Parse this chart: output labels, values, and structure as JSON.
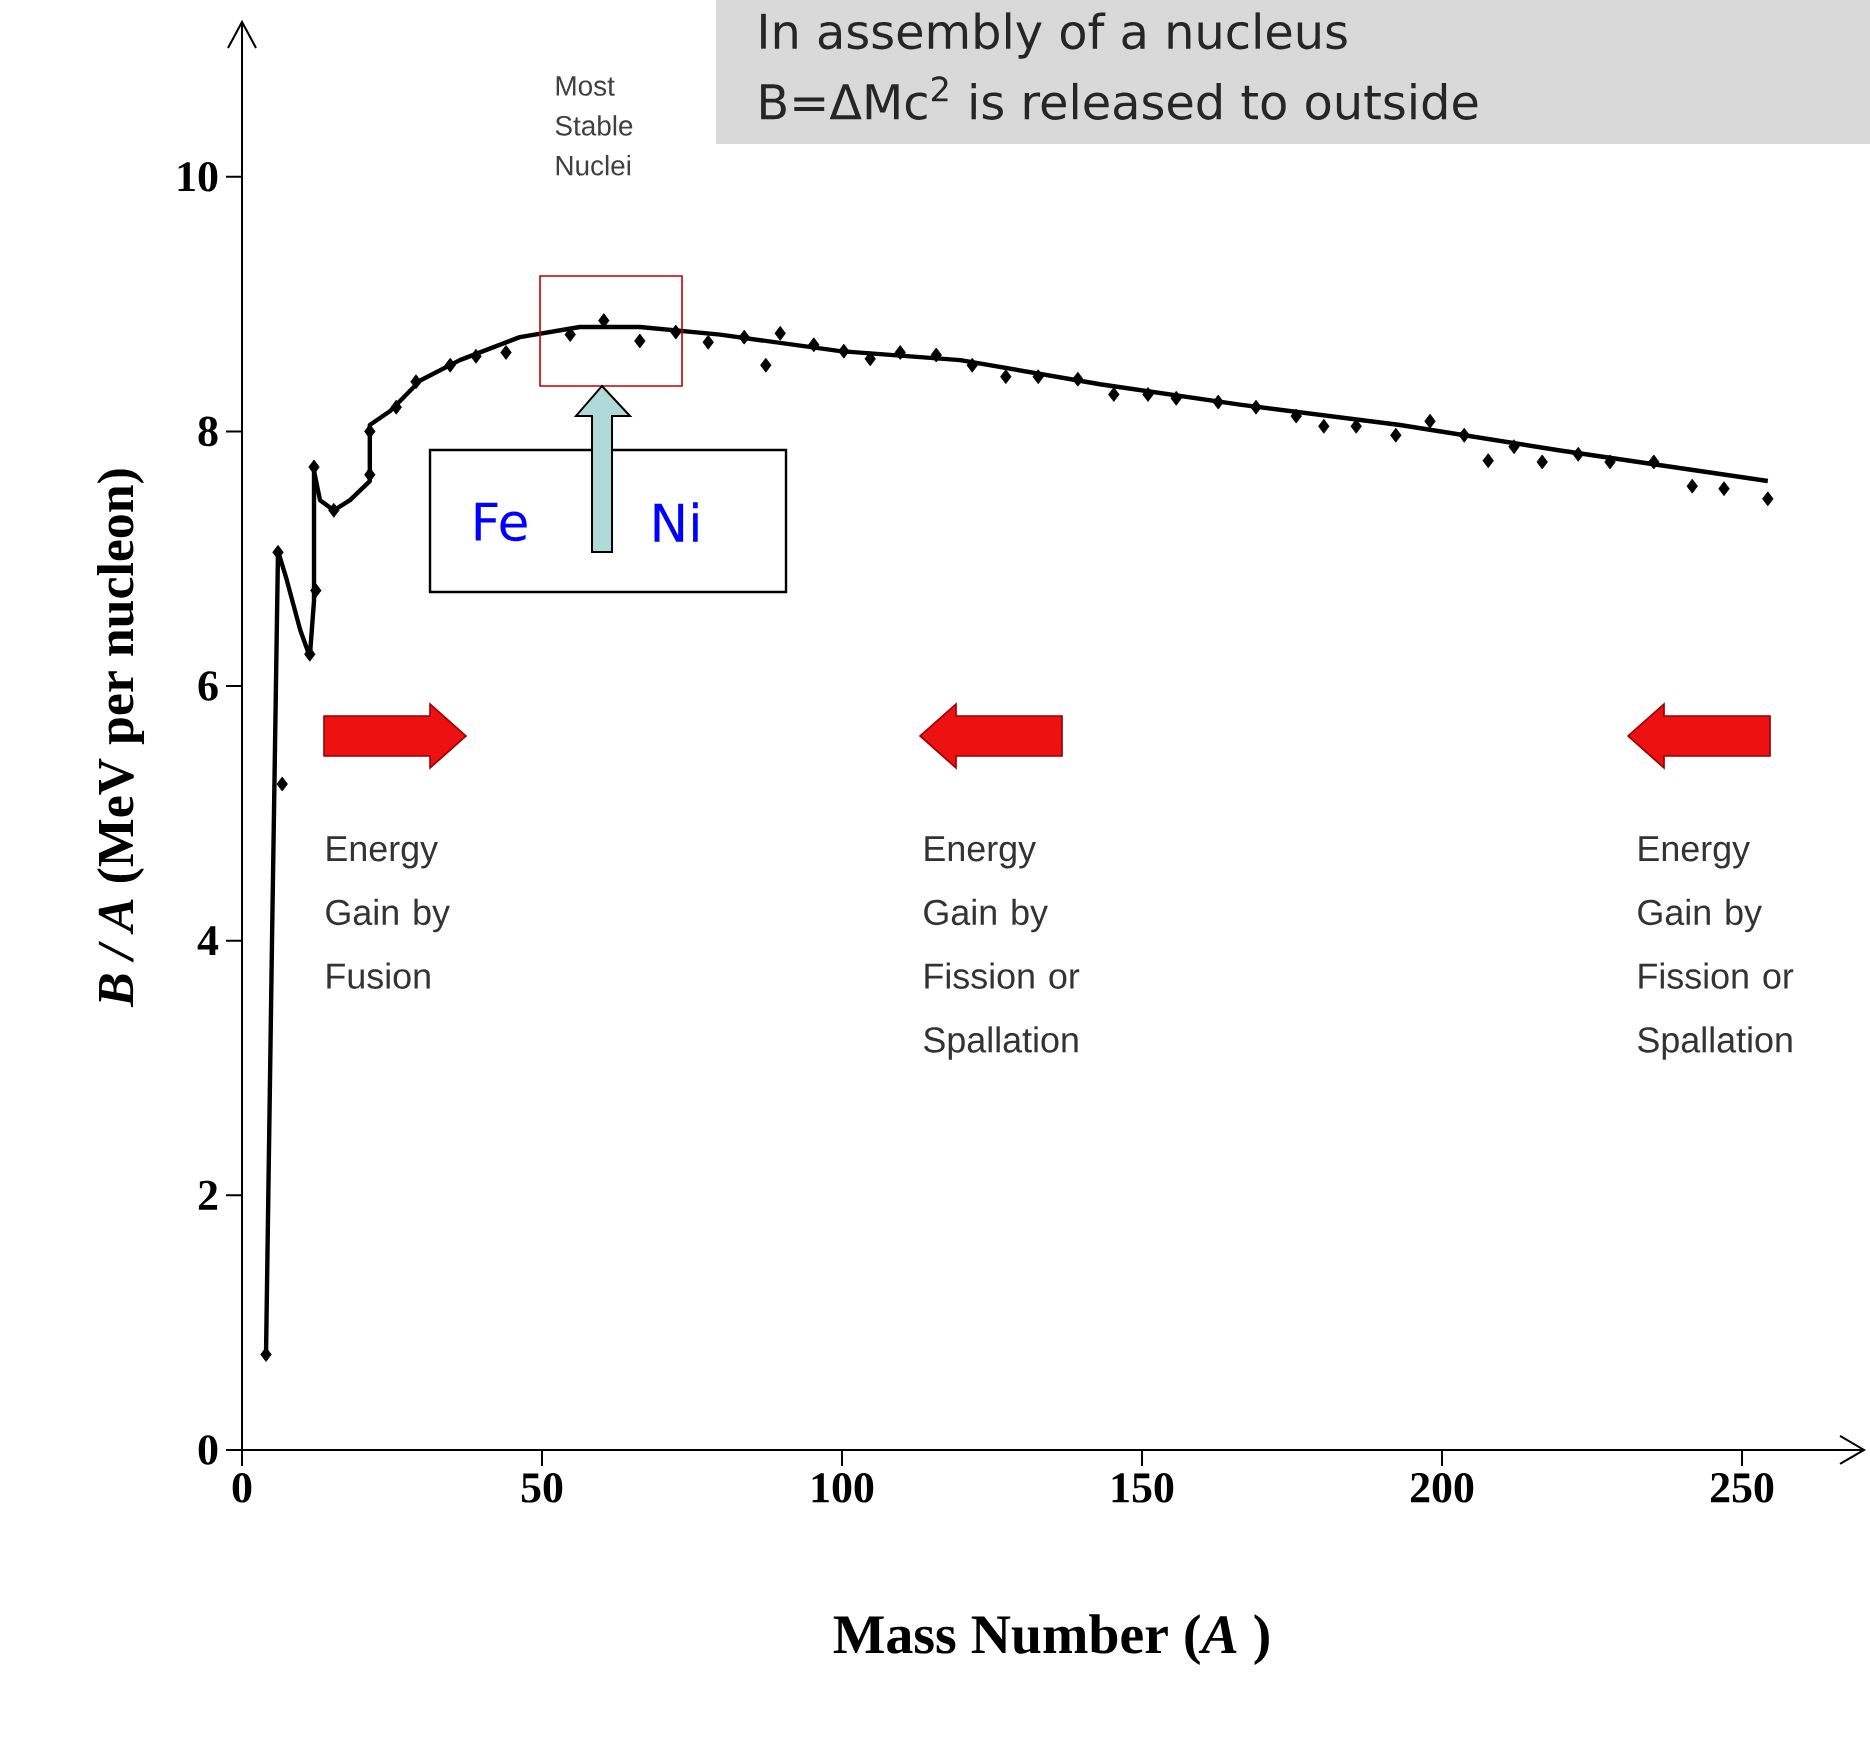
{
  "chart_data": {
    "type": "scatter",
    "xlabel": "Mass Number (*A* )",
    "ylabel": "*B / A*  (MeV per nucleon)",
    "xlim": [
      0,
      270
    ],
    "ylim": [
      0,
      11.2
    ],
    "xticks": [
      0,
      50,
      100,
      150,
      200,
      250
    ],
    "yticks": [
      0,
      2,
      4,
      6,
      8,
      10
    ],
    "series": [
      {
        "type": "scatter",
        "marker": "diamond",
        "color": "#000000",
        "x": [
          4,
          6,
          6.7,
          11.3,
          12.3,
          12,
          15.3,
          21.3,
          21.3,
          25.7,
          29,
          34.7,
          39,
          44,
          54.7,
          60.3,
          66.3,
          72.3,
          77.7,
          83.7,
          87.3,
          89.7,
          95.3,
          100.3,
          104.7,
          109.7,
          115.7,
          121.7,
          127.3,
          132.7,
          139.3,
          145.3,
          151,
          155.7,
          162.7,
          169,
          175.7,
          180.3,
          185.7,
          192.3,
          198,
          203.7,
          207.7,
          212,
          216.7,
          222.7,
          228,
          235.3,
          241.7,
          247,
          254.3
        ],
        "values": [
          0.75,
          7.05,
          5.23,
          6.25,
          6.75,
          7.72,
          7.38,
          7.66,
          8.0,
          8.19,
          8.39,
          8.52,
          8.59,
          8.62,
          8.76,
          8.87,
          8.71,
          8.78,
          8.7,
          8.74,
          8.52,
          8.77,
          8.68,
          8.63,
          8.57,
          8.62,
          8.6,
          8.52,
          8.43,
          8.43,
          8.41,
          8.29,
          8.29,
          8.26,
          8.23,
          8.19,
          8.12,
          8.04,
          8.04,
          7.97,
          8.08,
          7.97,
          7.77,
          7.88,
          7.76,
          7.82,
          7.76,
          7.76,
          7.57,
          7.55,
          7.47
        ]
      },
      {
        "type": "line",
        "color": "#000000",
        "line_style": "solid",
        "x": [
          4,
          5,
          6,
          7.3,
          9.7,
          11.3,
          12,
          12,
          13,
          15.3,
          18,
          21.3,
          21.3,
          24.7,
          29.7,
          36.3,
          46.3,
          56.3,
          66.3,
          79.7,
          99.7,
          119.7,
          143,
          166.3,
          193,
          219.7,
          254.3
        ],
        "values": [
          0.75,
          4.0,
          7.06,
          6.86,
          6.44,
          6.23,
          6.67,
          7.69,
          7.46,
          7.38,
          7.46,
          7.61,
          8.05,
          8.16,
          8.4,
          8.56,
          8.74,
          8.82,
          8.82,
          8.76,
          8.63,
          8.56,
          8.37,
          8.21,
          8.05,
          7.85,
          7.61
        ]
      }
    ],
    "annotations": [
      "Most Stable Nuclei",
      "Fe",
      "Ni",
      "In assembly of a nucleus",
      "B=ΔMc$^{2}$ is released to outside",
      "Energy Gain by Fusion",
      "Energy Gain by Fission or Spallation",
      "Energy Gain by Fission or Spallation"
    ]
  }
}
